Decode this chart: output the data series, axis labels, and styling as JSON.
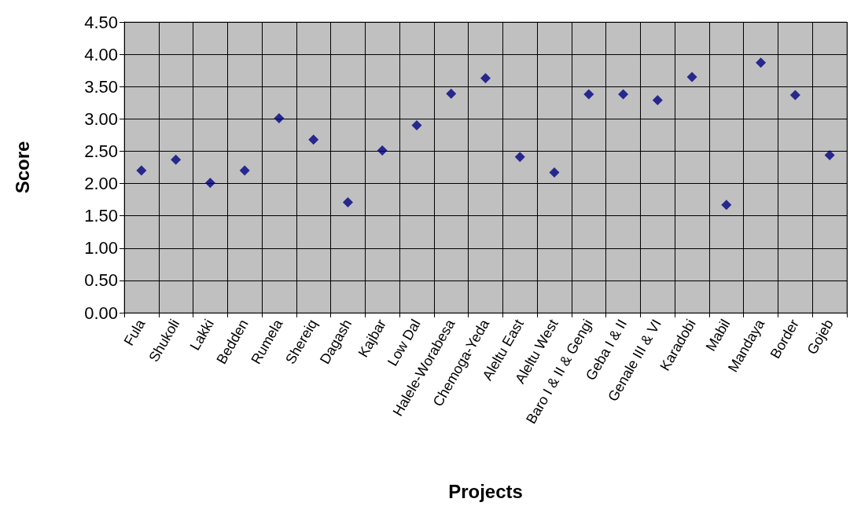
{
  "chart_data": {
    "type": "scatter",
    "xlabel": "Projects",
    "ylabel": "Score",
    "categories": [
      "Fula",
      "Shukoli",
      "Lakki",
      "Bedden",
      "Rumela",
      "Shereiq",
      "Dagash",
      "Kajbar",
      "Low Dal",
      "Halele-Worabesa",
      "Chemoga-Yeda",
      "Aleltu East",
      "Aleltu West",
      "Baro I & II & Gengi",
      "Geba I & II",
      "Genale III & VI",
      "Karadobi",
      "Mabil",
      "Mandaya",
      "Border",
      "Gojeb"
    ],
    "values": [
      2.2,
      2.37,
      2.01,
      2.2,
      3.01,
      2.68,
      1.71,
      2.51,
      2.9,
      3.39,
      3.63,
      2.41,
      2.17,
      3.38,
      3.38,
      3.29,
      3.65,
      1.67,
      3.87,
      3.37,
      2.44
    ],
    "color": "#000080",
    "marker": "diamond",
    "ylim": [
      0,
      4.5
    ],
    "yticks": [
      {
        "value": 0,
        "label": "0.00"
      },
      {
        "value": 0.5,
        "label": "0.50"
      },
      {
        "value": 1,
        "label": "1.00"
      },
      {
        "value": 1.5,
        "label": "1.50"
      },
      {
        "value": 2,
        "label": "2.00"
      },
      {
        "value": 2.5,
        "label": "2.50"
      },
      {
        "value": 3,
        "label": "3.00"
      },
      {
        "value": 3.5,
        "label": "3.50"
      },
      {
        "value": 4,
        "label": "4.00"
      },
      {
        "value": 4.5,
        "label": "4.50"
      }
    ],
    "grid": true
  }
}
